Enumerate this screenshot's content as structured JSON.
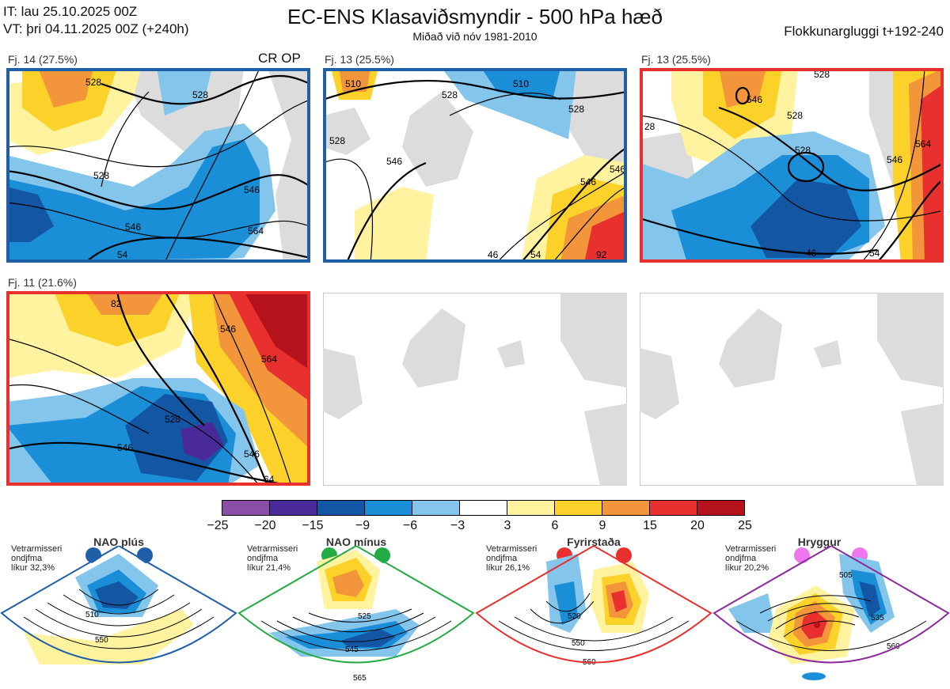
{
  "header": {
    "it_line": "IT: lau 25.10.2025 00Z",
    "vt_line": "VT: þri 04.11.2025 00Z  (+240h)",
    "title": "EC-ENS Klasaviðsmyndir - 500 hPa hæð",
    "subtitle": "Miðað við nóv 1981-2010",
    "window": "Flokkunargluggi t+192-240"
  },
  "panels": [
    {
      "label": "Fj. 14 (27.5%)",
      "extra": "CR OP",
      "border": "#1f5fa8",
      "contours": [
        "528",
        "528",
        "546",
        "564",
        "528",
        "546",
        "54"
      ]
    },
    {
      "label": "Fj. 13 (25.5%)",
      "border": "#1f5fa8",
      "contours": [
        "510",
        "510",
        "528",
        "528",
        "528",
        "546",
        "546",
        "546",
        "54",
        "46",
        "92"
      ]
    },
    {
      "label": "Fj. 13 (25.5%)",
      "border": "#e8312f",
      "contours": [
        "528",
        "528",
        "546",
        "546",
        "564",
        "54",
        "46",
        "28",
        "528"
      ]
    },
    {
      "label": "Fj. 11 (21.6%)",
      "border": "#e8312f",
      "contours": [
        "528",
        "546",
        "546",
        "564",
        "546",
        "64",
        "82"
      ]
    }
  ],
  "chart_data": {
    "type": "heatmap",
    "title": "EC-ENS Klasaviðsmyndir - 500 hPa hæð",
    "colorbar": {
      "ticks": [
        "−25",
        "−20",
        "−15",
        "−9",
        "−6",
        "−3",
        "3",
        "6",
        "9",
        "15",
        "20",
        "25"
      ],
      "colors": [
        "#8a4ea8",
        "#4a2a9a",
        "#1356a3",
        "#1a8fd8",
        "#84c5ec",
        "#ffffff",
        "#fff3a0",
        "#fcd22a",
        "#f3953a",
        "#e8312f",
        "#b5121b"
      ]
    },
    "regimes": [
      {
        "name": "NAO plús",
        "note_1": "Vetrarmisseri",
        "note_2": "ondjfma",
        "likelihood": "líkur 32,3%",
        "color": "#1f5fa8",
        "contours": [
          "510",
          "550"
        ]
      },
      {
        "name": "NAO mínus",
        "note_1": "Vetrarmisseri",
        "note_2": "ondjfma",
        "likelihood": "líkur 21,4%",
        "color": "#22aa44",
        "contours": [
          "525",
          "545",
          "565"
        ]
      },
      {
        "name": "Fyrirstaða",
        "note_1": "Vetrarmisseri",
        "note_2": "ondjfma",
        "likelihood": "líkur 26,1%",
        "color": "#e8312f",
        "contours": [
          "520",
          "550",
          "560"
        ]
      },
      {
        "name": "Hryggur",
        "note_1": "Vetrarmisseri",
        "note_2": "ondjfma",
        "likelihood": "líkur 20,2%",
        "color": "#8b2a9a",
        "contours": [
          "505",
          "535",
          "560"
        ]
      }
    ]
  }
}
